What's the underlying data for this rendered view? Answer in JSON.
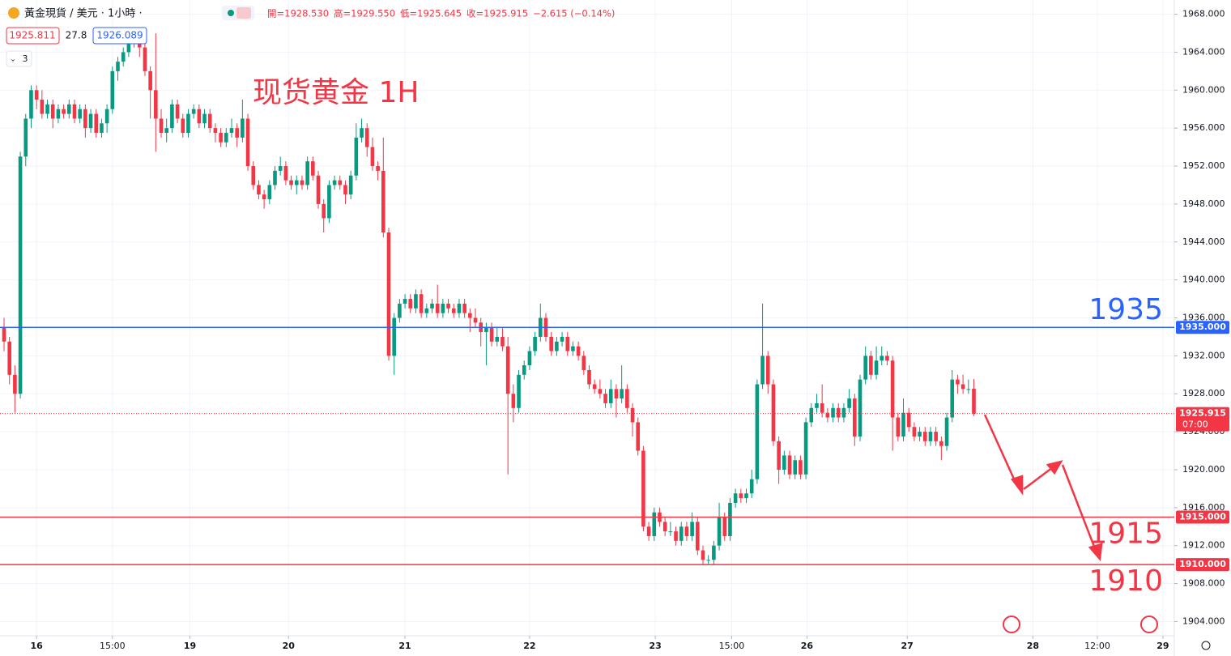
{
  "chart_data": {
    "type": "candlestick",
    "symbol": "黃金現貨 / 美元 · 1小時 ·",
    "ohlc_text": [
      "開=1928.530",
      "高=1929.550",
      "低=1925.645",
      "收=1925.915",
      "−2.615 (−0.14%)"
    ],
    "bid": "1925.811",
    "spread": "27.8",
    "ask": "1926.089",
    "indicator_count": "3",
    "annotation": "现货黄金 1H",
    "up_color": "#089981",
    "down_color": "#f23645",
    "ylim": [
      1902.5,
      1969.5
    ],
    "yticks": [
      {
        "value": 1904,
        "label": "1904.000"
      },
      {
        "value": 1908,
        "label": "1908.000"
      },
      {
        "value": 1912,
        "label": "1912.000"
      },
      {
        "value": 1916,
        "label": "1916.000"
      },
      {
        "value": 1920,
        "label": "1920.000"
      },
      {
        "value": 1924,
        "label": "1924.000"
      },
      {
        "value": 1928,
        "label": "1928.000"
      },
      {
        "value": 1932,
        "label": "1932.000"
      },
      {
        "value": 1936,
        "label": "1936.000"
      },
      {
        "value": 1940,
        "label": "1940.000"
      },
      {
        "value": 1944,
        "label": "1944.000"
      },
      {
        "value": 1948,
        "label": "1948.000"
      },
      {
        "value": 1952,
        "label": "1952.000"
      },
      {
        "value": 1956,
        "label": "1956.000"
      },
      {
        "value": 1960,
        "label": "1960.000"
      },
      {
        "value": 1964,
        "label": "1964.000"
      },
      {
        "value": 1968,
        "label": "1968.000"
      }
    ],
    "xlim": [
      -0.75,
      216
    ],
    "xticks": [
      {
        "value": 6,
        "label": "16"
      },
      {
        "value": 20,
        "label": "15:00"
      },
      {
        "value": 34.3,
        "label": "19"
      },
      {
        "value": 52.5,
        "label": "20"
      },
      {
        "value": 74,
        "label": "21"
      },
      {
        "value": 97,
        "label": "22"
      },
      {
        "value": 120.2,
        "label": "23"
      },
      {
        "value": 134.3,
        "label": "15:00"
      },
      {
        "value": 148.2,
        "label": "26"
      },
      {
        "value": 166.7,
        "label": "27"
      },
      {
        "value": 189.9,
        "label": "28"
      },
      {
        "value": 201.8,
        "label": "12:00"
      },
      {
        "value": 213.9,
        "label": "29"
      }
    ],
    "grid": true,
    "levels": [
      {
        "value": 1935,
        "label": "1935",
        "tag": "1935.000",
        "color": "#2962ff"
      },
      {
        "value": 1915,
        "label": "1915",
        "tag": "1915.000",
        "color": "#f23645"
      },
      {
        "value": 1910,
        "label": "1910",
        "tag": "1910.000",
        "color": "#f23645"
      }
    ],
    "last_price": 1925.915,
    "countdown": "07:00",
    "candles": [
      [
        1935,
        1936,
        1932.5,
        1933.5
      ],
      [
        1933.5,
        1934,
        1929,
        1930
      ],
      [
        1930,
        1931,
        1926,
        1928
      ],
      [
        1928,
        1953.5,
        1927.5,
        1953
      ],
      [
        1953,
        1957.5,
        1952,
        1957
      ],
      [
        1957,
        1960.5,
        1956,
        1960
      ],
      [
        1960,
        1960.5,
        1958,
        1959
      ],
      [
        1959,
        1960,
        1957,
        1957.5
      ],
      [
        1957.5,
        1959,
        1957,
        1958.5
      ],
      [
        1958.5,
        1959,
        1956,
        1957
      ],
      [
        1957,
        1958.5,
        1956.5,
        1958
      ],
      [
        1958,
        1958.5,
        1957,
        1957.5
      ],
      [
        1957.5,
        1959,
        1957,
        1958.5
      ],
      [
        1958.5,
        1959,
        1956.5,
        1957
      ],
      [
        1957,
        1958.5,
        1956.5,
        1958
      ],
      [
        1958,
        1958.5,
        1955,
        1956
      ],
      [
        1956,
        1958,
        1955.5,
        1957.5
      ],
      [
        1957.5,
        1958,
        1955,
        1955.5
      ],
      [
        1955.5,
        1957,
        1955,
        1956.5
      ],
      [
        1956.5,
        1958.5,
        1955.5,
        1958
      ],
      [
        1958,
        1962.5,
        1957.5,
        1962
      ],
      [
        1962,
        1963.5,
        1961,
        1963
      ],
      [
        1963,
        1964.5,
        1962.5,
        1964
      ],
      [
        1964,
        1965.5,
        1963.5,
        1965
      ],
      [
        1965,
        1966,
        1964.5,
        1965.5
      ],
      [
        1965.5,
        1966.5,
        1963.5,
        1964.5
      ],
      [
        1964.5,
        1965,
        1961.5,
        1962
      ],
      [
        1962,
        1962.5,
        1957,
        1960
      ],
      [
        1960,
        1966,
        1953.5,
        1957
      ],
      [
        1957,
        1958,
        1955,
        1955.5
      ],
      [
        1955.5,
        1957,
        1954.5,
        1956
      ],
      [
        1956,
        1959,
        1955.5,
        1958.5
      ],
      [
        1958.5,
        1959,
        1956.5,
        1957
      ],
      [
        1957,
        1957.5,
        1955,
        1955.5
      ],
      [
        1955.5,
        1958,
        1955,
        1957.5
      ],
      [
        1957.5,
        1958.5,
        1957,
        1958
      ],
      [
        1958,
        1958.5,
        1956,
        1956.5
      ],
      [
        1956.5,
        1958,
        1956,
        1957.5
      ],
      [
        1957.5,
        1958,
        1955.5,
        1956
      ],
      [
        1956,
        1956.5,
        1954.5,
        1955.5
      ],
      [
        1955.5,
        1956,
        1954,
        1954.5
      ],
      [
        1954.5,
        1956,
        1954,
        1955.5
      ],
      [
        1955.5,
        1957,
        1955,
        1956
      ],
      [
        1956,
        1956.5,
        1954,
        1955
      ],
      [
        1955,
        1959,
        1954.5,
        1957
      ],
      [
        1957,
        1957.5,
        1951.5,
        1952
      ],
      [
        1952,
        1952.5,
        1949.5,
        1950
      ],
      [
        1950,
        1950.5,
        1948.5,
        1949
      ],
      [
        1949,
        1949.5,
        1947.5,
        1948.5
      ],
      [
        1948.5,
        1950.5,
        1948,
        1950
      ],
      [
        1950,
        1952,
        1949.5,
        1951.5
      ],
      [
        1951.5,
        1953,
        1951,
        1952
      ],
      [
        1952,
        1952.5,
        1950,
        1950.5
      ],
      [
        1950.5,
        1951,
        1949.5,
        1950
      ],
      [
        1950,
        1951,
        1949,
        1950.5
      ],
      [
        1950.5,
        1951,
        1949.5,
        1950
      ],
      [
        1950,
        1953,
        1949.5,
        1952.5
      ],
      [
        1952.5,
        1953,
        1950.5,
        1951
      ],
      [
        1951,
        1951.5,
        1947.5,
        1948
      ],
      [
        1948,
        1948.5,
        1945,
        1946.5
      ],
      [
        1946.5,
        1950.5,
        1946,
        1950
      ],
      [
        1950,
        1951,
        1949.5,
        1950.5
      ],
      [
        1950.5,
        1951,
        1949.5,
        1950
      ],
      [
        1950,
        1950.5,
        1948,
        1949
      ],
      [
        1949,
        1951.5,
        1948.5,
        1951
      ],
      [
        1951,
        1956.5,
        1950.5,
        1955
      ],
      [
        1955,
        1957,
        1954.5,
        1956
      ],
      [
        1956,
        1956.5,
        1953,
        1954
      ],
      [
        1954,
        1955,
        1951.5,
        1952
      ],
      [
        1952,
        1952.5,
        1950.5,
        1951.5
      ],
      [
        1951.5,
        1955,
        1944.5,
        1945
      ],
      [
        1945,
        1945.5,
        1931.5,
        1932
      ],
      [
        1932,
        1936.5,
        1930,
        1936
      ],
      [
        1936,
        1938,
        1935.5,
        1937.5
      ],
      [
        1937.5,
        1938.5,
        1937,
        1938
      ],
      [
        1938,
        1938.5,
        1936.5,
        1937
      ],
      [
        1937,
        1939,
        1936.5,
        1938.5
      ],
      [
        1938.5,
        1939,
        1936,
        1936.5
      ],
      [
        1936.5,
        1937.5,
        1936,
        1937
      ],
      [
        1937,
        1938,
        1936.5,
        1937.5
      ],
      [
        1937.5,
        1939.5,
        1936,
        1936.5
      ],
      [
        1936.5,
        1938,
        1936,
        1937.5
      ],
      [
        1937.5,
        1938,
        1936.5,
        1937
      ],
      [
        1937,
        1937.5,
        1936,
        1936.5
      ],
      [
        1936.5,
        1938,
        1936,
        1937.5
      ],
      [
        1937.5,
        1938,
        1936,
        1936.5
      ],
      [
        1936.5,
        1937,
        1934.5,
        1936
      ],
      [
        1936,
        1937,
        1935,
        1935.5
      ],
      [
        1935.5,
        1936,
        1933,
        1934.5
      ],
      [
        1934.5,
        1935.5,
        1931,
        1935
      ],
      [
        1935,
        1935.5,
        1933,
        1933.5
      ],
      [
        1933.5,
        1935,
        1933,
        1934
      ],
      [
        1934,
        1935,
        1932.5,
        1933
      ],
      [
        1933,
        1934,
        1919.5,
        1928
      ],
      [
        1928,
        1929,
        1925,
        1926.5
      ],
      [
        1926.5,
        1930.5,
        1926,
        1930
      ],
      [
        1930,
        1931.5,
        1929.5,
        1931
      ],
      [
        1931,
        1933,
        1930.5,
        1932.5
      ],
      [
        1932.5,
        1934.5,
        1932,
        1934
      ],
      [
        1934,
        1937.5,
        1933.5,
        1936
      ],
      [
        1936,
        1936.5,
        1933.5,
        1934
      ],
      [
        1934,
        1934.5,
        1932,
        1932.5
      ],
      [
        1932.5,
        1934,
        1932,
        1933.5
      ],
      [
        1933.5,
        1934.5,
        1933,
        1934
      ],
      [
        1934,
        1934.5,
        1932,
        1932.5
      ],
      [
        1932.5,
        1933.5,
        1932,
        1933
      ],
      [
        1933,
        1933.5,
        1931.5,
        1932
      ],
      [
        1932,
        1932.5,
        1930,
        1930.5
      ],
      [
        1930.5,
        1931,
        1928.5,
        1929
      ],
      [
        1929,
        1929.5,
        1928,
        1928.5
      ],
      [
        1928.5,
        1929.5,
        1927.5,
        1928
      ],
      [
        1928,
        1928.5,
        1926.5,
        1927
      ],
      [
        1927,
        1929.5,
        1926.5,
        1928.5
      ],
      [
        1928.5,
        1929,
        1925.5,
        1927.5
      ],
      [
        1927.5,
        1931,
        1927,
        1928.5
      ],
      [
        1928.5,
        1929,
        1926,
        1926.5
      ],
      [
        1926.5,
        1927,
        1923.5,
        1925
      ],
      [
        1925,
        1925.5,
        1921.5,
        1922
      ],
      [
        1922,
        1922.5,
        1913.5,
        1914
      ],
      [
        1914,
        1914.5,
        1912.5,
        1913
      ],
      [
        1913,
        1916,
        1912.5,
        1915.5
      ],
      [
        1915.5,
        1916,
        1914,
        1914.5
      ],
      [
        1914.5,
        1915,
        1913,
        1913.5
      ],
      [
        1913.5,
        1914.5,
        1913,
        1913.5
      ],
      [
        1913.5,
        1914,
        1912,
        1912.5
      ],
      [
        1912.5,
        1914.5,
        1912,
        1914
      ],
      [
        1914,
        1914.5,
        1912.5,
        1913
      ],
      [
        1913,
        1915.5,
        1912.5,
        1914.5
      ],
      [
        1914.5,
        1915,
        1911,
        1911.5
      ],
      [
        1911.5,
        1912,
        1910,
        1910.5
      ],
      [
        1910.5,
        1911,
        1910,
        1910.5
      ],
      [
        1910.5,
        1912.5,
        1910,
        1912
      ],
      [
        1912,
        1916.5,
        1911.5,
        1915
      ],
      [
        1915,
        1915.5,
        1912.5,
        1913
      ],
      [
        1913,
        1917,
        1912.5,
        1916.5
      ],
      [
        1916.5,
        1918,
        1916,
        1917.5
      ],
      [
        1917.5,
        1918,
        1916.5,
        1917
      ],
      [
        1917,
        1918,
        1916.5,
        1917.5
      ],
      [
        1917.5,
        1920,
        1917,
        1919
      ],
      [
        1919,
        1929.5,
        1918.5,
        1929
      ],
      [
        1929,
        1937.5,
        1928.5,
        1932
      ],
      [
        1932,
        1932.5,
        1928,
        1929
      ],
      [
        1929,
        1929.5,
        1922.5,
        1923
      ],
      [
        1923,
        1923.5,
        1918.5,
        1920
      ],
      [
        1920,
        1922,
        1919.5,
        1921.5
      ],
      [
        1921.5,
        1922,
        1919,
        1919.5
      ],
      [
        1919.5,
        1921.5,
        1919,
        1921
      ],
      [
        1921,
        1921.5,
        1919,
        1919.5
      ],
      [
        1919.5,
        1925.5,
        1919,
        1925
      ],
      [
        1925,
        1927,
        1924.5,
        1926.5
      ],
      [
        1926.5,
        1928,
        1926,
        1927
      ],
      [
        1927,
        1929,
        1925.5,
        1926
      ],
      [
        1926,
        1926.5,
        1925,
        1925.5
      ],
      [
        1925.5,
        1927,
        1925,
        1926.5
      ],
      [
        1926.5,
        1927,
        1925,
        1925.5
      ],
      [
        1925.5,
        1927,
        1925,
        1926.5
      ],
      [
        1926.5,
        1928.5,
        1926,
        1927.5
      ],
      [
        1927.5,
        1928,
        1922.5,
        1923.5
      ],
      [
        1923.5,
        1930,
        1923,
        1929.5
      ],
      [
        1929.5,
        1933,
        1929,
        1932
      ],
      [
        1932,
        1932.5,
        1929.5,
        1930
      ],
      [
        1930,
        1933,
        1929.5,
        1931.5
      ],
      [
        1931.5,
        1933,
        1931,
        1932
      ],
      [
        1932,
        1932.5,
        1931,
        1931.5
      ],
      [
        1931.5,
        1932,
        1922,
        1925.5
      ],
      [
        1925.5,
        1926,
        1923,
        1923.5
      ],
      [
        1923.5,
        1927.5,
        1923,
        1926
      ],
      [
        1926,
        1926.5,
        1924,
        1924.5
      ],
      [
        1924.5,
        1925,
        1923,
        1923.5
      ],
      [
        1923.5,
        1924.5,
        1923,
        1924
      ],
      [
        1924,
        1924.5,
        1922.5,
        1923
      ],
      [
        1923,
        1924.5,
        1922.5,
        1924
      ],
      [
        1924,
        1924.5,
        1922.5,
        1923
      ],
      [
        1923,
        1923.5,
        1921,
        1922.5
      ],
      [
        1922.5,
        1926,
        1922,
        1925.5
      ],
      [
        1925.5,
        1930.5,
        1925,
        1929.5
      ],
      [
        1929.5,
        1930,
        1928,
        1929
      ],
      [
        1929,
        1930,
        1928,
        1928.5
      ],
      [
        1928.5,
        1929.5,
        1928,
        1928.5
      ],
      [
        1928.53,
        1929.55,
        1925.645,
        1925.915
      ]
    ]
  }
}
